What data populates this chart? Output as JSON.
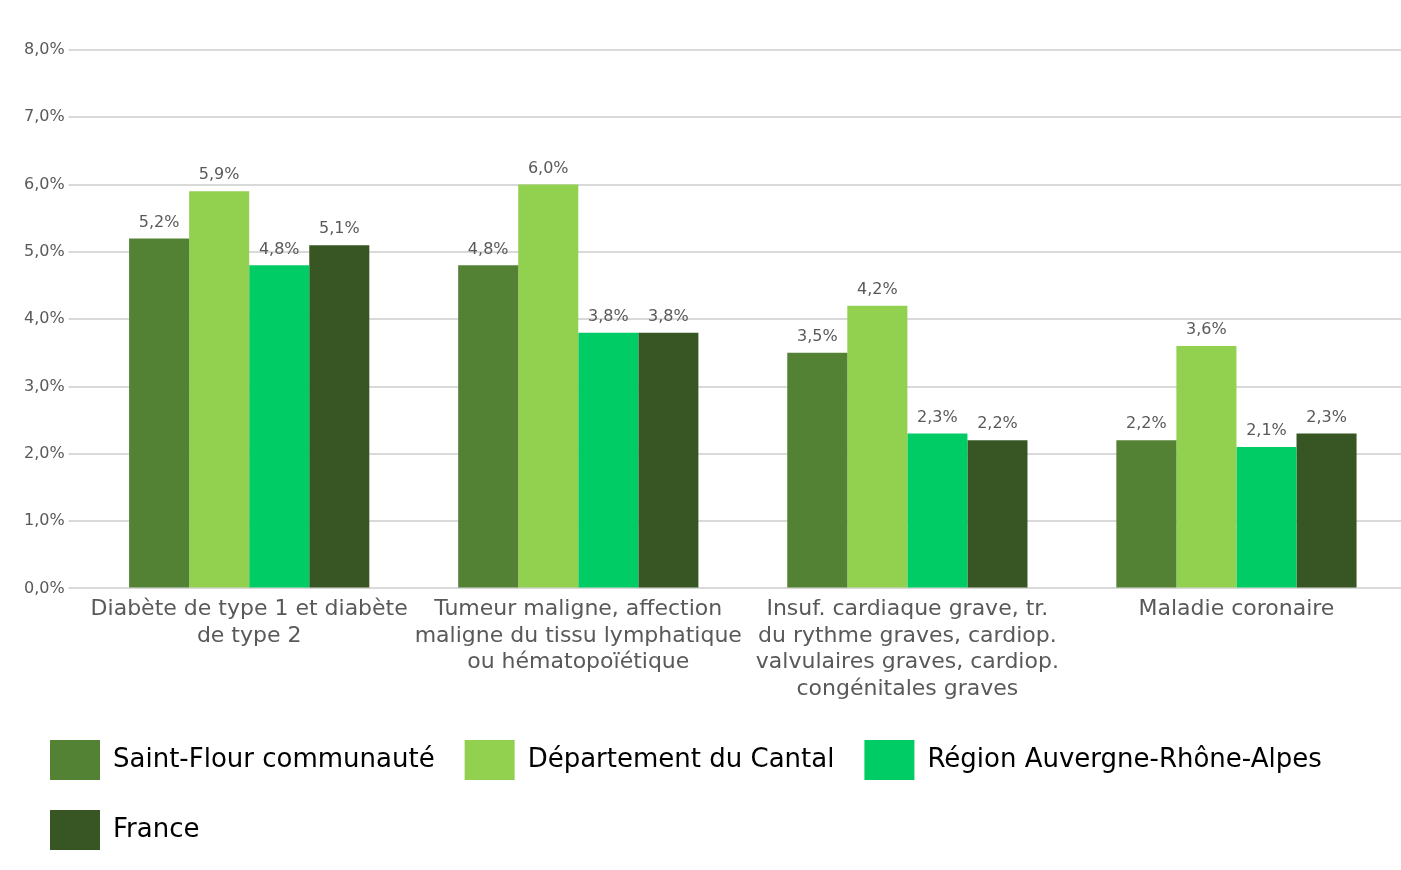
{
  "chart_data": {
    "type": "bar",
    "categories": [
      "Diabète de type 1 et diabète de type 2",
      "Tumeur maligne, affection maligne du tissu lymphatique ou hématopoïétique",
      "Insuf. cardiaque grave, tr. du rythme graves, cardiop. valvulaires graves, cardiop. congénitales graves",
      "Maladie coronaire"
    ],
    "series": [
      {
        "name": "Saint-Flour communauté",
        "color": "#548235",
        "values": [
          5.2,
          4.8,
          3.5,
          2.2
        ],
        "value_labels": [
          "5,2%",
          "4,8%",
          "3,5%",
          "2,2%"
        ]
      },
      {
        "name": "Département du Cantal",
        "color": "#92d050",
        "values": [
          5.9,
          6.0,
          4.2,
          3.6
        ],
        "value_labels": [
          "5,9%",
          "6,0%",
          "4,2%",
          "3,6%"
        ]
      },
      {
        "name": "Région Auvergne-Rhône-Alpes",
        "color": "#00cc66",
        "values": [
          4.8,
          3.8,
          2.3,
          2.1
        ],
        "value_labels": [
          "4,8%",
          "3,8%",
          "2,3%",
          "2,1%"
        ]
      },
      {
        "name": "France",
        "color": "#375623",
        "values": [
          5.1,
          3.8,
          2.2,
          2.3
        ],
        "value_labels": [
          "5,1%",
          "3,8%",
          "2,2%",
          "2,3%"
        ]
      }
    ],
    "ylim": [
      0,
      8
    ],
    "yticks": [
      {
        "value": 0,
        "label": "0,0%"
      },
      {
        "value": 1,
        "label": "1,0%"
      },
      {
        "value": 2,
        "label": "2,0%"
      },
      {
        "value": 3,
        "label": "3,0%"
      },
      {
        "value": 4,
        "label": "4,0%"
      },
      {
        "value": 5,
        "label": "5,0%"
      },
      {
        "value": 6,
        "label": "6,0%"
      },
      {
        "value": 7,
        "label": "7,0%"
      },
      {
        "value": 8,
        "label": "8,0%"
      }
    ],
    "grid": "y",
    "legend": "bottom"
  }
}
